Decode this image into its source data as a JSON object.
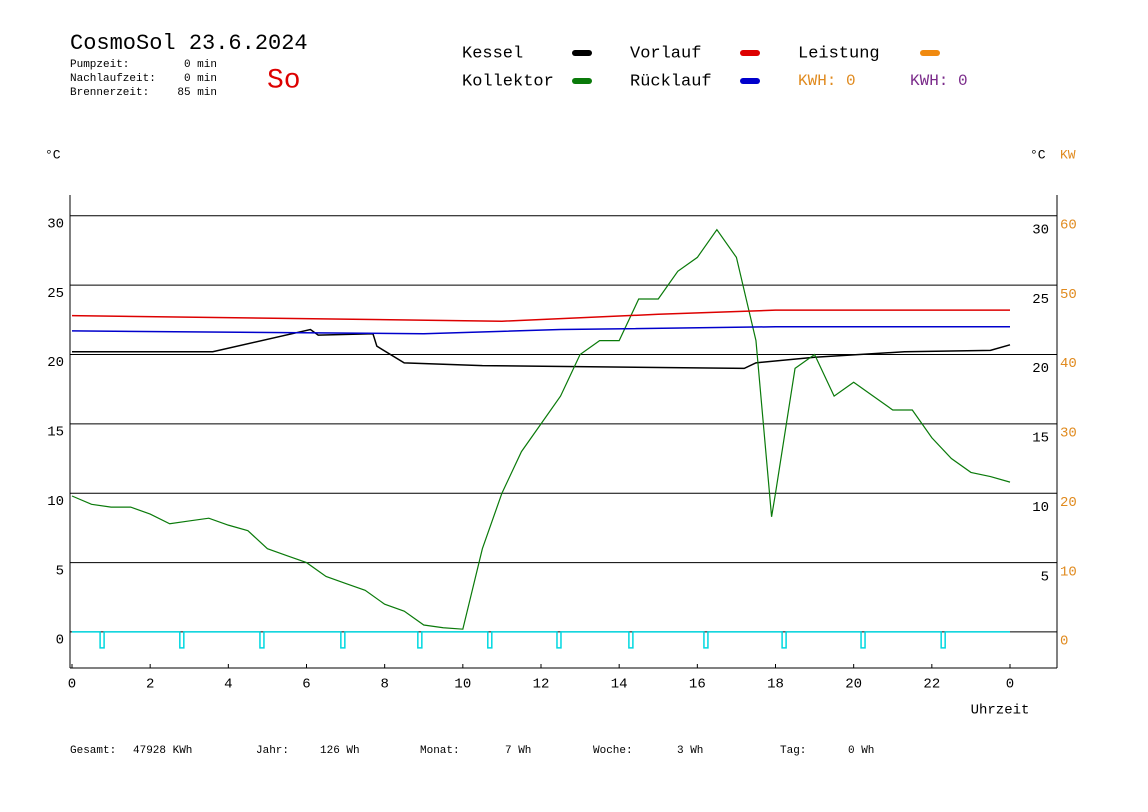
{
  "header": {
    "title": "CosmoSol 23.6.2024",
    "weekday": "So",
    "info": [
      {
        "label": "Pumpzeit:",
        "value": "0 min"
      },
      {
        "label": "Nachlaufzeit:",
        "value": "0 min"
      },
      {
        "label": "Brennerzeit:",
        "value": "85 min"
      }
    ],
    "kwh": [
      {
        "text": "KWH: 0",
        "color": "#e08a1e"
      },
      {
        "text": "KWH: 0",
        "color": "#7a2a8a"
      }
    ]
  },
  "chart_data": {
    "type": "line",
    "y_unit_left": "°C",
    "y_unit_right": "°C",
    "y2_unit": "KW",
    "xlabel": "Uhrzeit",
    "xlim": [
      -0.05,
      25.2
    ],
    "ylim": [
      -2.6,
      31.5
    ],
    "y2lim": [
      -5.2,
      63
    ],
    "xticks": [
      0,
      2,
      4,
      6,
      8,
      10,
      12,
      14,
      16,
      18,
      20,
      22,
      {
        "value": 24,
        "label": "0"
      }
    ],
    "yticks": [
      0,
      5,
      10,
      15,
      20,
      25,
      30
    ],
    "y_right_ticks": [
      5,
      10,
      15,
      20,
      25,
      30
    ],
    "y2ticks": [
      0,
      10,
      20,
      30,
      40,
      50,
      60
    ],
    "grid": true,
    "series": [
      {
        "name": "Kessel",
        "color": "#000000",
        "x": [
          0,
          3.5,
          3.6,
          6.1,
          6.3,
          7.7,
          7.8,
          8.5,
          10.5,
          17.2,
          17.5,
          19,
          21.3,
          23.5,
          24
        ],
        "values": [
          20.2,
          20.2,
          20.2,
          21.8,
          21.4,
          21.5,
          20.6,
          19.4,
          19.2,
          19.0,
          19.4,
          19.8,
          20.2,
          20.3,
          20.7
        ]
      },
      {
        "name": "Kollektor",
        "color": "#0a7a0a",
        "x": [
          0,
          0.5,
          1,
          1.5,
          2,
          2.5,
          3,
          3.5,
          4,
          4.5,
          5,
          5.5,
          6,
          6.5,
          7,
          7.5,
          8,
          8.5,
          9,
          9.5,
          10,
          10.5,
          11,
          11.5,
          12,
          12.5,
          13,
          13.5,
          14,
          14.5,
          15,
          15.5,
          16,
          16.5,
          17,
          17.5,
          17.9,
          18,
          18.5,
          19,
          19.5,
          20,
          20.5,
          21,
          21.5,
          22,
          22.5,
          23,
          23.5,
          24
        ],
        "values": [
          9.8,
          9.2,
          9.0,
          9.0,
          8.5,
          7.8,
          8.0,
          8.2,
          7.7,
          7.3,
          6.0,
          5.5,
          5.0,
          4.0,
          3.5,
          3.0,
          2.0,
          1.5,
          0.5,
          0.3,
          0.2,
          6.0,
          10,
          13,
          15,
          17,
          20,
          21,
          21,
          24,
          24,
          26,
          27,
          29,
          27,
          21,
          8.3,
          10,
          19,
          20,
          17,
          18,
          17,
          16,
          16,
          14,
          12.5,
          11.5,
          11.2,
          10.8
        ]
      },
      {
        "name": "Vorlauf",
        "color": "#dd0000",
        "x": [
          0,
          11,
          15,
          18,
          24
        ],
        "values": [
          22.8,
          22.4,
          22.9,
          23.2,
          23.2
        ]
      },
      {
        "name": "Rücklauf",
        "color": "#0000cc",
        "x": [
          0,
          9,
          12.5,
          18,
          24
        ],
        "values": [
          21.7,
          21.5,
          21.8,
          22.0,
          22.0
        ]
      },
      {
        "name": "Leistung",
        "color": "#f08a10",
        "x": [],
        "values": []
      }
    ],
    "pump_pulses": {
      "color": "#00d8e0",
      "x": [
        0.77,
        2.81,
        4.86,
        6.93,
        8.9,
        10.69,
        12.46,
        14.3,
        16.22,
        18.22,
        20.24,
        22.29
      ]
    }
  },
  "footer": [
    {
      "label": "Gesamt:",
      "value": "47928 KWh"
    },
    {
      "label": "Jahr:",
      "value": "126 Wh"
    },
    {
      "label": "Monat:",
      "value": "7 Wh"
    },
    {
      "label": "Woche:",
      "value": "3 Wh"
    },
    {
      "label": "Tag:",
      "value": "0 Wh"
    }
  ]
}
